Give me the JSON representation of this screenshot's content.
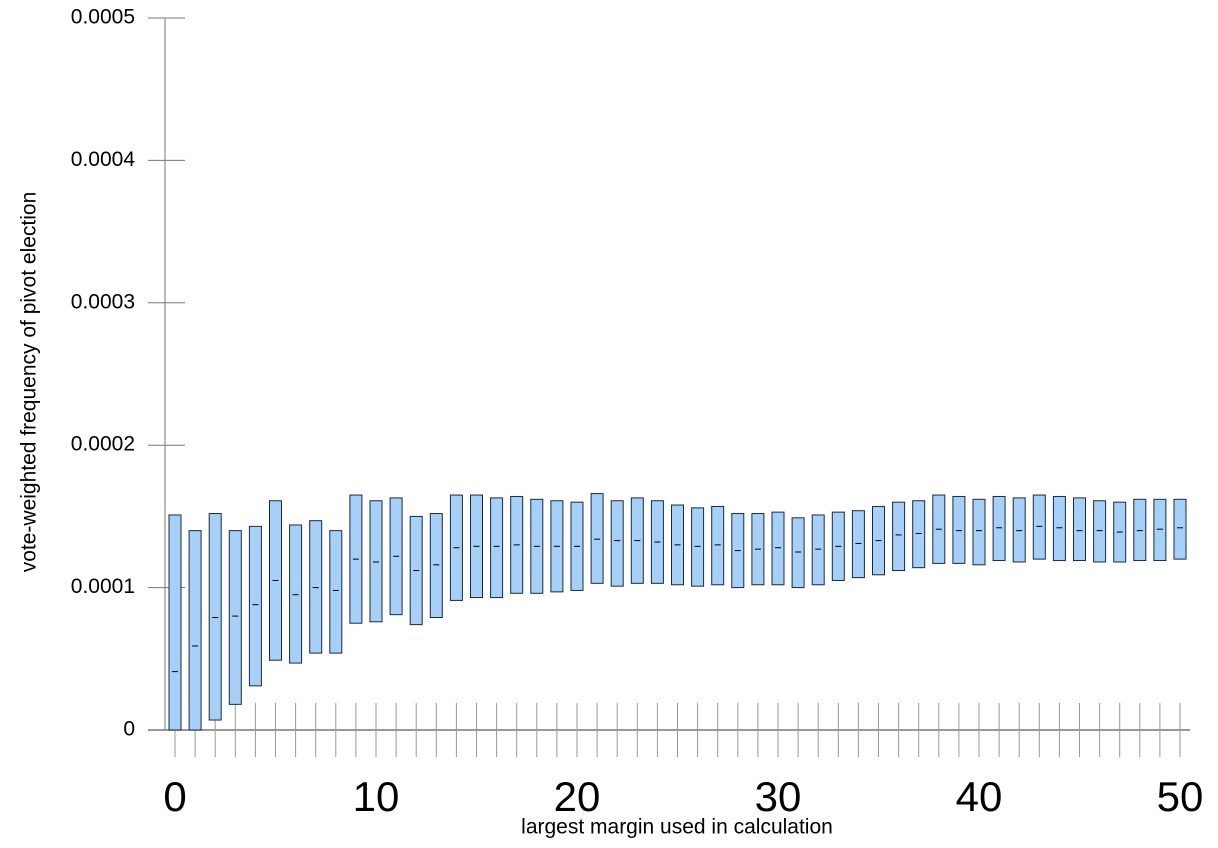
{
  "chart_data": {
    "type": "rangebar",
    "xlabel": "largest margin used in calculation",
    "ylabel": "vote-weighted frequency of pivot election",
    "x": [
      0,
      1,
      2,
      3,
      4,
      5,
      6,
      7,
      8,
      9,
      10,
      11,
      12,
      13,
      14,
      15,
      16,
      17,
      18,
      19,
      20,
      21,
      22,
      23,
      24,
      25,
      26,
      27,
      28,
      29,
      30,
      31,
      32,
      33,
      34,
      35,
      36,
      37,
      38,
      39,
      40,
      41,
      42,
      43,
      44,
      45,
      46,
      47,
      48,
      49,
      50
    ],
    "low": [
      0,
      0,
      7e-06,
      1.8e-05,
      3.1e-05,
      4.9e-05,
      4.7e-05,
      5.4e-05,
      5.4e-05,
      7.5e-05,
      7.6e-05,
      8.1e-05,
      7.4e-05,
      7.9e-05,
      9.1e-05,
      9.3e-05,
      9.3e-05,
      9.6e-05,
      9.6e-05,
      9.7e-05,
      9.8e-05,
      0.000103,
      0.000101,
      0.000103,
      0.000103,
      0.000102,
      0.000101,
      0.000102,
      0.0001,
      0.000102,
      0.000102,
      0.0001,
      0.000102,
      0.000105,
      0.000107,
      0.000109,
      0.000112,
      0.000114,
      0.000117,
      0.000117,
      0.000116,
      0.000119,
      0.000118,
      0.00012,
      0.000119,
      0.000119,
      0.000118,
      0.000118,
      0.000119,
      0.000119,
      0.00012
    ],
    "median": [
      4.1e-05,
      5.9e-05,
      7.9e-05,
      8e-05,
      8.8e-05,
      0.000105,
      9.5e-05,
      0.0001,
      9.8e-05,
      0.00012,
      0.000118,
      0.000122,
      0.000112,
      0.000116,
      0.000128,
      0.000129,
      0.000129,
      0.00013,
      0.000129,
      0.000129,
      0.000129,
      0.000134,
      0.000133,
      0.000133,
      0.000132,
      0.00013,
      0.000129,
      0.00013,
      0.000126,
      0.000127,
      0.000128,
      0.000125,
      0.000127,
      0.000129,
      0.000131,
      0.000133,
      0.000137,
      0.000138,
      0.000141,
      0.00014,
      0.00014,
      0.000142,
      0.00014,
      0.000143,
      0.000142,
      0.00014,
      0.00014,
      0.000139,
      0.00014,
      0.000141,
      0.000142
    ],
    "high": [
      0.000151,
      0.00014,
      0.000152,
      0.00014,
      0.000143,
      0.000161,
      0.000144,
      0.000147,
      0.00014,
      0.000165,
      0.000161,
      0.000163,
      0.00015,
      0.000152,
      0.000165,
      0.000165,
      0.000163,
      0.000164,
      0.000162,
      0.000161,
      0.00016,
      0.000166,
      0.000161,
      0.000163,
      0.000161,
      0.000158,
      0.000156,
      0.000157,
      0.000152,
      0.000152,
      0.000153,
      0.000149,
      0.000151,
      0.000153,
      0.000154,
      0.000157,
      0.00016,
      0.000161,
      0.000165,
      0.000164,
      0.000162,
      0.000164,
      0.000163,
      0.000165,
      0.000164,
      0.000163,
      0.000161,
      0.00016,
      0.000162,
      0.000162,
      0.000162
    ],
    "color": "#a6d0f7",
    "xlim": [
      0,
      50
    ],
    "xticks": [
      0,
      10,
      20,
      30,
      40,
      50
    ],
    "ylim": [
      0,
      0.0005
    ],
    "yticks": [
      0,
      0.0001,
      0.0002,
      0.0003,
      0.0004,
      0.0005
    ]
  }
}
